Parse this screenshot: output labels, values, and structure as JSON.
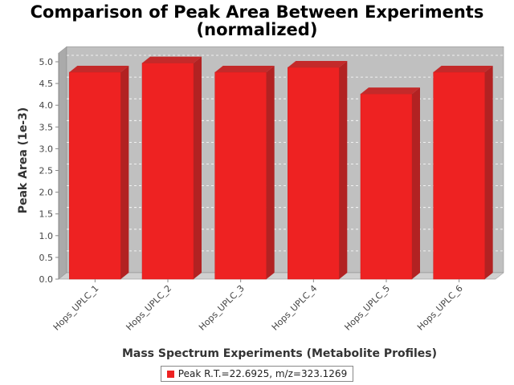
{
  "chart_data": {
    "type": "bar",
    "title": "Comparison of Peak Area Between Experiments",
    "subtitle": "(normalized)",
    "xlabel": "Mass Spectrum Experiments (Metabolite Profiles)",
    "ylabel": "Peak Area (1e-3)",
    "categories": [
      "Hops_UPLC_1",
      "Hops_UPLC_2",
      "Hops_UPLC_3",
      "Hops_UPLC_4",
      "Hops_UPLC_5",
      "Hops_UPLC_6"
    ],
    "series": [
      {
        "name": "Peak R.T.=22.6925, m/z=323.1269",
        "values": [
          4.76,
          4.97,
          4.76,
          4.87,
          4.26,
          4.76
        ]
      }
    ],
    "ylim": [
      0,
      5.2
    ],
    "yticks": [
      "0.0",
      "0.5",
      "1.0",
      "1.5",
      "2.0",
      "2.5",
      "3.0",
      "3.5",
      "4.0",
      "4.5",
      "5.0"
    ],
    "grid": true,
    "legend_position": "bottom-center",
    "colors": {
      "bar": "#ee2222",
      "bar_top": "#c42a2a",
      "bar_side": "#b22222",
      "plot_bg": "#c0c0c0",
      "floor": "#d0d0d0"
    }
  }
}
